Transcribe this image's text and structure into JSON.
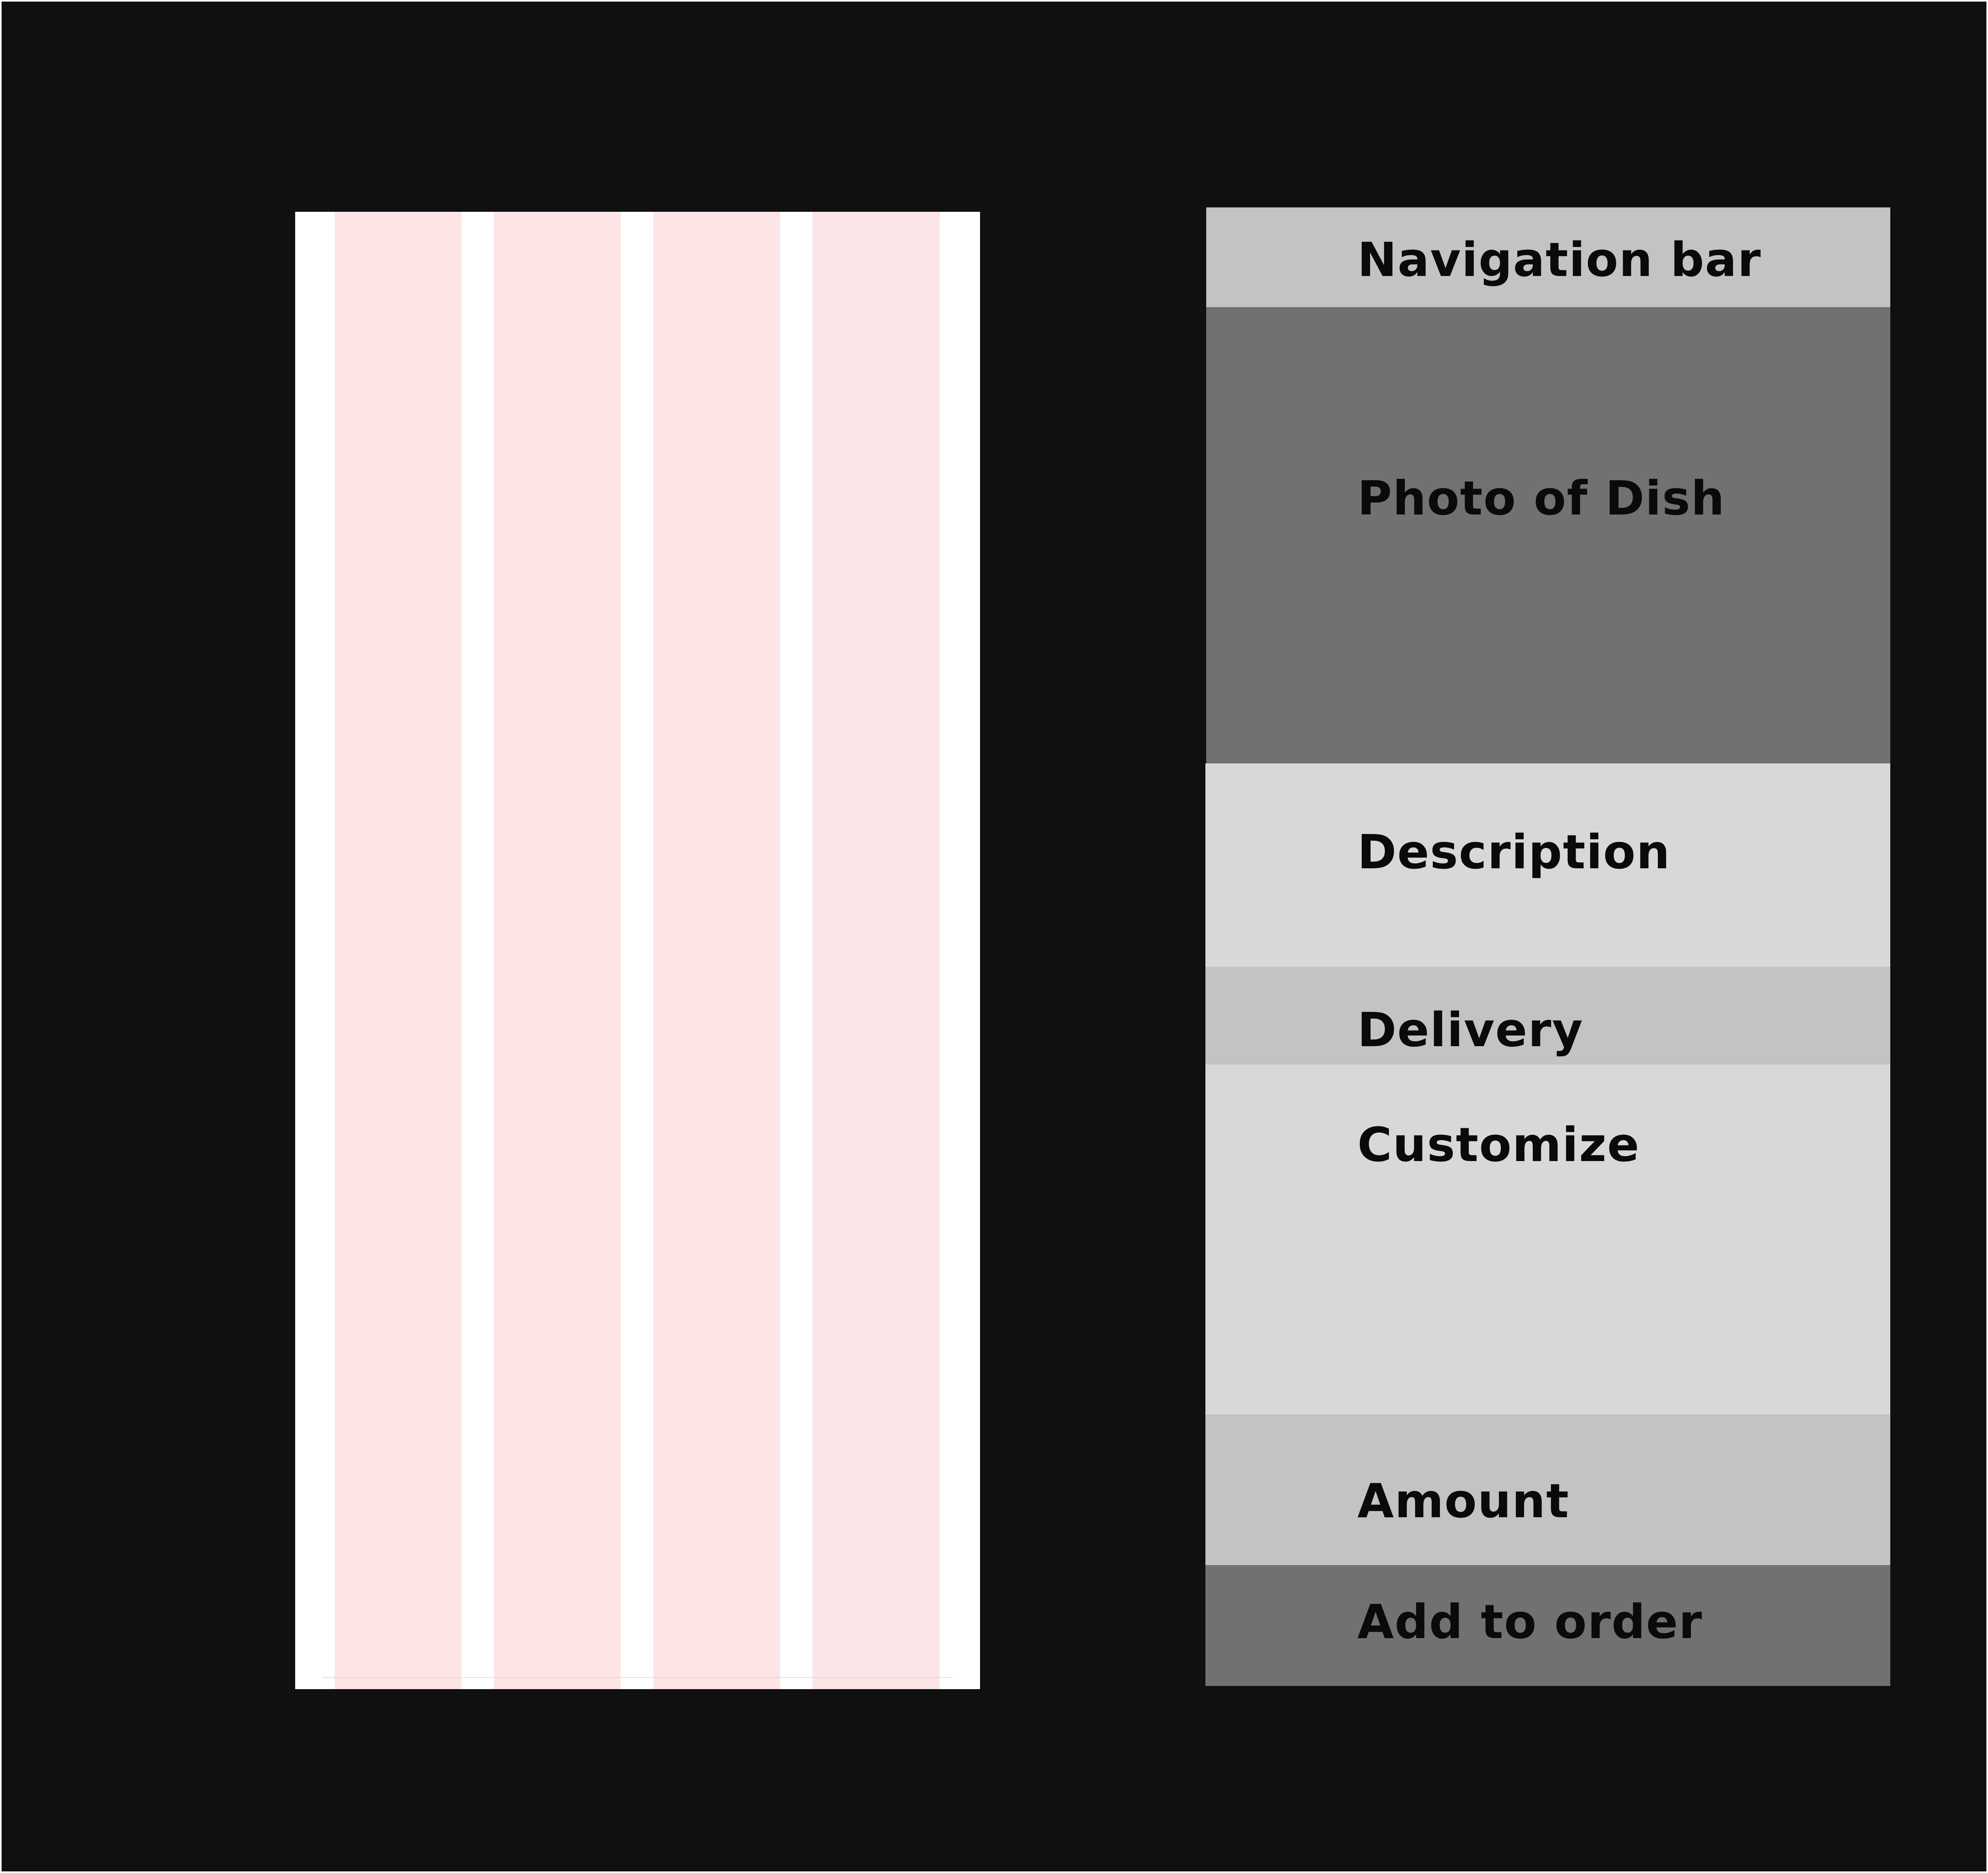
{
  "grid": {
    "columns": 4,
    "column_color": "#fde5e6",
    "frame_color": "#ffffff"
  },
  "wireframe": {
    "sections": [
      {
        "label": "Navigation bar",
        "color": "#c3c3c3"
      },
      {
        "label": "Photo of Dish",
        "color": "#717171"
      },
      {
        "label": "Description",
        "color": "#d8d8d8"
      },
      {
        "label": "Delivery",
        "color": "#c3c3c3"
      },
      {
        "label": "Customize",
        "color": "#d8d8d8"
      },
      {
        "label": "Amount",
        "color": "#c3c3c3"
      },
      {
        "label": "Add to order",
        "color": "#717171"
      }
    ]
  },
  "background_color": "#101010"
}
